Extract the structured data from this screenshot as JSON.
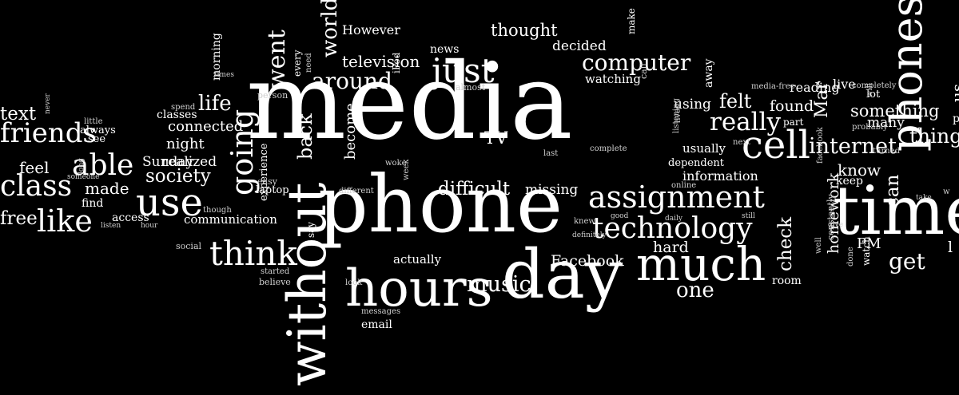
{
  "colors": {
    "background": "#000000",
    "text": "#ffffff",
    "text_dim": "#cfcfcf"
  },
  "words": [
    {
      "text": "media",
      "vertical": false
    },
    {
      "text": "phone",
      "vertical": false
    },
    {
      "text": "day",
      "vertical": false
    },
    {
      "text": "hours",
      "vertical": false
    },
    {
      "text": "time",
      "vertical": false
    },
    {
      "text": "without",
      "vertical": true
    },
    {
      "text": "much",
      "vertical": false
    },
    {
      "text": "assignment",
      "vertical": false
    },
    {
      "text": "cell",
      "vertical": false
    },
    {
      "text": "technology",
      "vertical": false
    },
    {
      "text": "use",
      "vertical": false
    },
    {
      "text": "think",
      "vertical": false
    },
    {
      "text": "like",
      "vertical": false
    },
    {
      "text": "just",
      "vertical": false
    },
    {
      "text": "computer",
      "vertical": false
    },
    {
      "text": "really",
      "vertical": false
    },
    {
      "text": "internet",
      "vertical": false
    },
    {
      "text": "able",
      "vertical": false
    },
    {
      "text": "class",
      "vertical": false
    },
    {
      "text": "friends",
      "vertical": false
    },
    {
      "text": "going",
      "vertical": true
    },
    {
      "text": "around",
      "vertical": false
    },
    {
      "text": "music",
      "vertical": false
    },
    {
      "text": "difficult",
      "vertical": false
    },
    {
      "text": "life",
      "vertical": false
    },
    {
      "text": "society",
      "vertical": false
    },
    {
      "text": "world",
      "vertical": true
    },
    {
      "text": "went",
      "vertical": true
    },
    {
      "text": "one",
      "vertical": false
    },
    {
      "text": "get",
      "vertical": false
    },
    {
      "text": "felt",
      "vertical": false
    },
    {
      "text": "thought",
      "vertical": false
    },
    {
      "text": "television",
      "vertical": false
    },
    {
      "text": "Facebook",
      "vertical": false
    },
    {
      "text": "hard",
      "vertical": false
    },
    {
      "text": "connected",
      "vertical": false
    },
    {
      "text": "made",
      "vertical": false
    },
    {
      "text": "free",
      "vertical": false
    },
    {
      "text": "feel",
      "vertical": false
    },
    {
      "text": "text",
      "vertical": false
    },
    {
      "text": "check",
      "vertical": true
    },
    {
      "text": "homework",
      "vertical": true
    },
    {
      "text": "know",
      "vertical": false
    },
    {
      "text": "can",
      "vertical": true
    },
    {
      "text": "PM",
      "vertical": false
    },
    {
      "text": "Mar",
      "vertical": true
    },
    {
      "text": "found",
      "vertical": false
    },
    {
      "text": "something",
      "vertical": false
    },
    {
      "text": "thing",
      "vertical": false
    },
    {
      "text": "many",
      "vertical": false
    },
    {
      "text": "TV",
      "vertical": false
    },
    {
      "text": "missing",
      "vertical": false
    },
    {
      "text": "night",
      "vertical": false
    },
    {
      "text": "realized",
      "vertical": false
    },
    {
      "text": "using",
      "vertical": false
    },
    {
      "text": "information",
      "vertical": false
    },
    {
      "text": "usually",
      "vertical": false
    },
    {
      "text": "watching",
      "vertical": false
    },
    {
      "text": "decided",
      "vertical": false
    },
    {
      "text": "news",
      "vertical": false
    },
    {
      "text": "However",
      "vertical": false
    },
    {
      "text": "back",
      "vertical": true
    },
    {
      "text": "become",
      "vertical": true
    },
    {
      "text": "communication",
      "vertical": false
    },
    {
      "text": "actually",
      "vertical": false
    },
    {
      "text": "email",
      "vertical": false
    },
    {
      "text": "Sunday",
      "vertical": false
    },
    {
      "text": "morning",
      "vertical": true
    },
    {
      "text": "classes",
      "vertical": false
    },
    {
      "text": "access",
      "vertical": false
    },
    {
      "text": "find",
      "vertical": false
    },
    {
      "text": "see",
      "vertical": false
    },
    {
      "text": "always",
      "vertical": false
    },
    {
      "text": "away",
      "vertical": true
    },
    {
      "text": "make",
      "vertical": true
    },
    {
      "text": "reading",
      "vertical": false
    },
    {
      "text": "live",
      "vertical": false
    },
    {
      "text": "lot",
      "vertical": false
    },
    {
      "text": "keep",
      "vertical": false
    },
    {
      "text": "room",
      "vertical": false
    },
    {
      "text": "watch",
      "vertical": true
    },
    {
      "text": "part",
      "vertical": false
    },
    {
      "text": "dependent",
      "vertical": false
    },
    {
      "text": "experience",
      "vertical": true
    },
    {
      "text": "laptop",
      "vertical": false
    },
    {
      "text": "easy",
      "vertical": false
    },
    {
      "text": "believe",
      "vertical": false
    },
    {
      "text": "started",
      "vertical": false
    },
    {
      "text": "social",
      "vertical": false
    },
    {
      "text": "though",
      "vertical": false
    },
    {
      "text": "hour",
      "vertical": false
    },
    {
      "text": "listen",
      "vertical": false
    },
    {
      "text": "long",
      "vertical": true
    },
    {
      "text": "someone",
      "vertical": false
    },
    {
      "text": "never",
      "vertical": true
    },
    {
      "text": "little",
      "vertical": false
    },
    {
      "text": "spend",
      "vertical": false
    },
    {
      "text": "times",
      "vertical": false
    },
    {
      "text": "person",
      "vertical": false
    },
    {
      "text": "every",
      "vertical": true
    },
    {
      "text": "need",
      "vertical": true
    },
    {
      "text": "iPod",
      "vertical": true
    },
    {
      "text": "almost",
      "vertical": false
    },
    {
      "text": "woke",
      "vertical": false
    },
    {
      "text": "week",
      "vertical": true
    },
    {
      "text": "different",
      "vertical": false
    },
    {
      "text": "last",
      "vertical": false
    },
    {
      "text": "complete",
      "vertical": false
    },
    {
      "text": "lives",
      "vertical": true
    },
    {
      "text": "listening",
      "vertical": true
    },
    {
      "text": "next",
      "vertical": false
    },
    {
      "text": "online",
      "vertical": false
    },
    {
      "text": "call",
      "vertical": true
    },
    {
      "text": "media-free",
      "vertical": false
    },
    {
      "text": "completely",
      "vertical": false
    },
    {
      "text": "probably",
      "vertical": false
    },
    {
      "text": "turned",
      "vertical": false
    },
    {
      "text": "will",
      "vertical": true
    },
    {
      "text": "facebook",
      "vertical": true
    },
    {
      "text": "take",
      "vertical": false
    },
    {
      "text": "give",
      "vertical": false
    },
    {
      "text": "done",
      "vertical": true
    },
    {
      "text": "constantly",
      "vertical": true
    },
    {
      "text": "well",
      "vertical": true
    },
    {
      "text": "knew",
      "vertical": false
    },
    {
      "text": "definitely",
      "vertical": false
    },
    {
      "text": "good",
      "vertical": false
    },
    {
      "text": "daily",
      "vertical": false
    },
    {
      "text": "still",
      "vertical": false
    },
    {
      "text": "look",
      "vertical": false
    },
    {
      "text": "messages",
      "vertical": false
    },
    {
      "text": "say",
      "vertical": true
    },
    {
      "text": "phones",
      "vertical": true
    },
    {
      "text": "us",
      "vertical": true
    },
    {
      "text": "pe",
      "vertical": false
    },
    {
      "text": "w",
      "vertical": false
    },
    {
      "text": "l",
      "vertical": false
    },
    {
      "text": "ho",
      "vertical": false
    },
    {
      "text": "go",
      "vertical": false
    }
  ]
}
